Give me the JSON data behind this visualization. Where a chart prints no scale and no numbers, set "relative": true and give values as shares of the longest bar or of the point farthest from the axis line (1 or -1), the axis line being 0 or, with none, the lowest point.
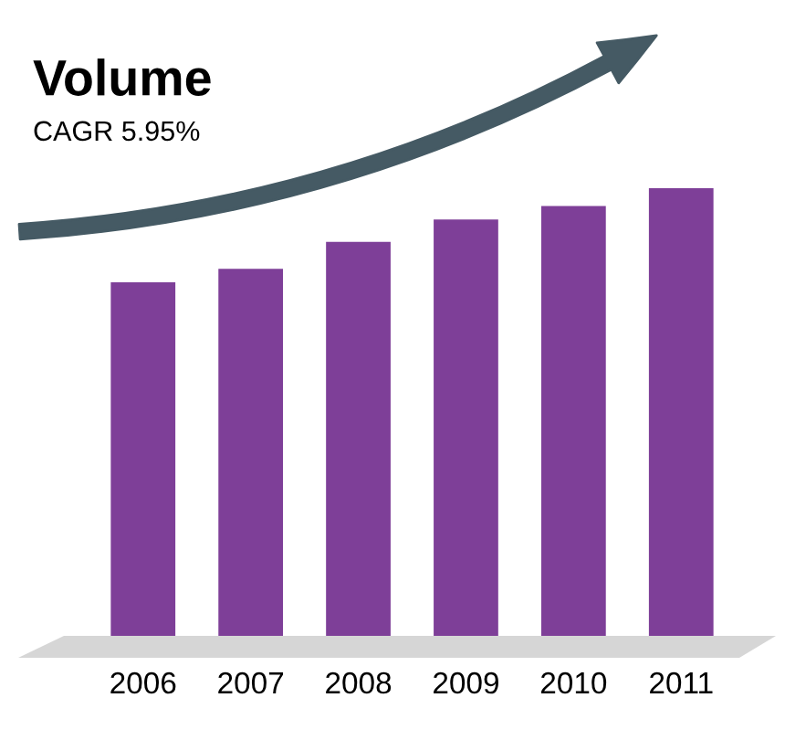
{
  "chart_data": {
    "type": "bar",
    "title": "Volume",
    "subtitle": "CAGR 5.95%",
    "categories": [
      "2006",
      "2007",
      "2008",
      "2009",
      "2010",
      "2011"
    ],
    "values": [
      0.79,
      0.82,
      0.88,
      0.93,
      0.96,
      1
    ],
    "color": "#7e3f98",
    "relative": true,
    "grid": false,
    "legend": false
  }
}
